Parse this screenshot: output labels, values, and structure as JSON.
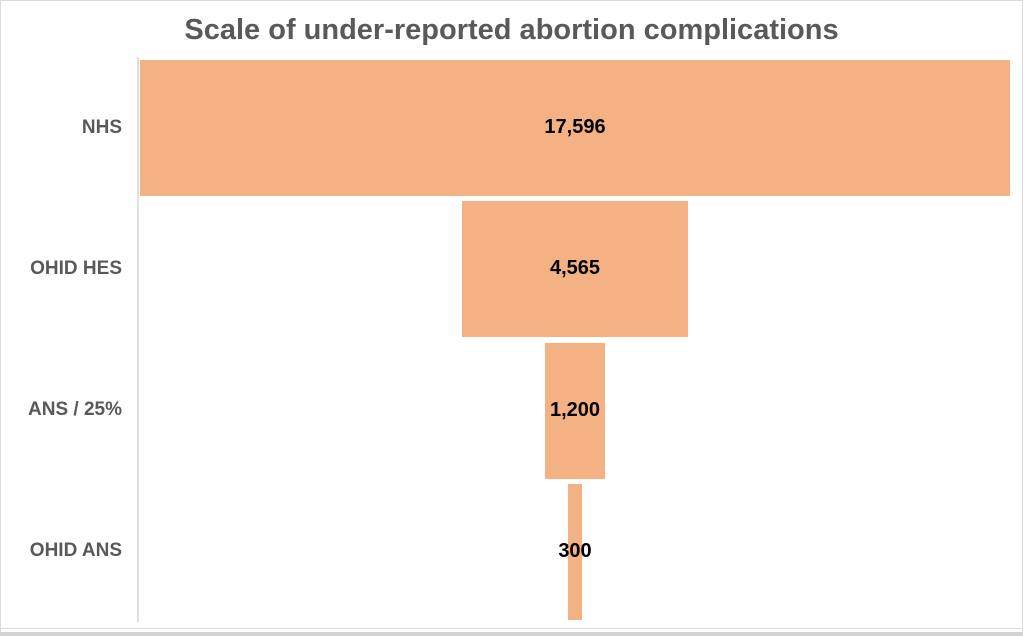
{
  "chart_data": {
    "type": "bar",
    "subtype": "horizontal-funnel",
    "title": "Scale of under-reported abortion complications",
    "categories": [
      "NHS",
      "OHID HES",
      "ANS / 25%",
      "OHID ANS"
    ],
    "values": [
      17596,
      4565,
      1200,
      300
    ],
    "value_labels": [
      "17,596",
      "4,565",
      "1,200",
      "300"
    ],
    "xlabel": "",
    "ylabel": "",
    "xlim": [
      0,
      17596
    ],
    "grid": false,
    "legend": "none",
    "bars_centered": true,
    "colors": {
      "bar_fill": "#F4B183",
      "title_text": "#595959",
      "category_text": "#595959",
      "value_text": "#000000",
      "axis_line": "#E0E0E0"
    }
  }
}
